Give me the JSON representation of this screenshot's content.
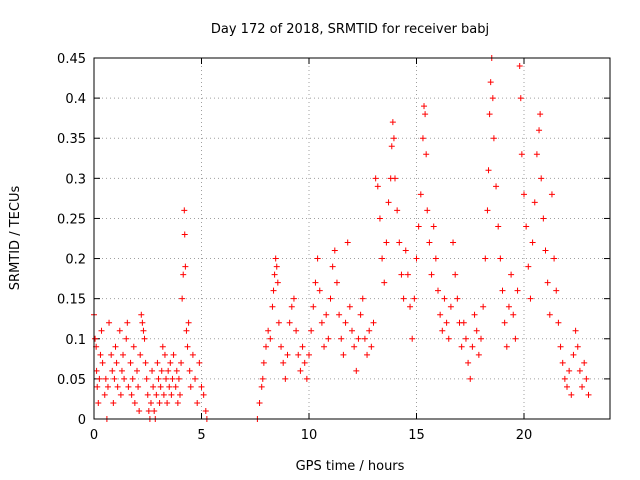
{
  "chart_data": {
    "type": "scatter",
    "title": "Day 172 of 2018, SRMTID for receiver babj",
    "xlabel": "GPS time / hours",
    "ylabel": "SRMTID / TECUs",
    "xlim": [
      0,
      24
    ],
    "ylim": [
      0,
      0.45
    ],
    "xticks": [
      0,
      5,
      10,
      15,
      20
    ],
    "xtick_labels": [
      "0",
      "5",
      "10",
      "15",
      "20"
    ],
    "yticks": [
      0,
      0.05,
      0.1,
      0.15,
      0.2,
      0.25,
      0.3,
      0.35,
      0.4,
      0.45
    ],
    "ytick_labels": [
      "0",
      "0.05",
      "0.1",
      "0.15",
      "0.2",
      "0.25",
      "0.3",
      "0.35",
      "0.4",
      "0.45"
    ],
    "grid": true,
    "marker": "+",
    "color": "#ff0000",
    "series": [
      {
        "name": "SRMTID",
        "points": [
          [
            0.0,
            0.13
          ],
          [
            0.05,
            0.1
          ],
          [
            0.1,
            0.09
          ],
          [
            0.12,
            0.06
          ],
          [
            0.15,
            0.04
          ],
          [
            0.2,
            0.02
          ],
          [
            0.25,
            0.05
          ],
          [
            0.3,
            0.08
          ],
          [
            0.35,
            0.11
          ],
          [
            0.4,
            0.07
          ],
          [
            0.5,
            0.03
          ],
          [
            0.55,
            0.05
          ],
          [
            0.6,
            0.0
          ],
          [
            0.65,
            0.04
          ],
          [
            0.7,
            0.12
          ],
          [
            0.8,
            0.08
          ],
          [
            0.85,
            0.06
          ],
          [
            0.9,
            0.02
          ],
          [
            0.95,
            0.05
          ],
          [
            1.0,
            0.09
          ],
          [
            1.05,
            0.07
          ],
          [
            1.1,
            0.04
          ],
          [
            1.2,
            0.11
          ],
          [
            1.25,
            0.03
          ],
          [
            1.3,
            0.06
          ],
          [
            1.35,
            0.08
          ],
          [
            1.4,
            0.05
          ],
          [
            1.5,
            0.1
          ],
          [
            1.55,
            0.12
          ],
          [
            1.6,
            0.04
          ],
          [
            1.7,
            0.07
          ],
          [
            1.75,
            0.03
          ],
          [
            1.8,
            0.05
          ],
          [
            1.85,
            0.09
          ],
          [
            1.9,
            0.02
          ],
          [
            2.0,
            0.06
          ],
          [
            2.05,
            0.04
          ],
          [
            2.1,
            0.01
          ],
          [
            2.15,
            0.08
          ],
          [
            2.2,
            0.13
          ],
          [
            2.25,
            0.12
          ],
          [
            2.3,
            0.11
          ],
          [
            2.35,
            0.1
          ],
          [
            2.4,
            0.07
          ],
          [
            2.45,
            0.05
          ],
          [
            2.5,
            0.03
          ],
          [
            2.55,
            0.01
          ],
          [
            2.6,
            0.0
          ],
          [
            2.65,
            0.02
          ],
          [
            2.7,
            0.06
          ],
          [
            2.75,
            0.04
          ],
          [
            2.8,
            0.01
          ],
          [
            2.85,
            0.0
          ],
          [
            2.9,
            0.03
          ],
          [
            2.95,
            0.07
          ],
          [
            3.0,
            0.05
          ],
          [
            3.05,
            0.02
          ],
          [
            3.1,
            0.04
          ],
          [
            3.15,
            0.06
          ],
          [
            3.2,
            0.09
          ],
          [
            3.25,
            0.03
          ],
          [
            3.3,
            0.08
          ],
          [
            3.35,
            0.05
          ],
          [
            3.4,
            0.02
          ],
          [
            3.45,
            0.06
          ],
          [
            3.5,
            0.04
          ],
          [
            3.55,
            0.07
          ],
          [
            3.6,
            0.03
          ],
          [
            3.65,
            0.05
          ],
          [
            3.7,
            0.08
          ],
          [
            3.8,
            0.04
          ],
          [
            3.85,
            0.06
          ],
          [
            3.9,
            0.02
          ],
          [
            3.95,
            0.05
          ],
          [
            4.0,
            0.03
          ],
          [
            4.05,
            0.07
          ],
          [
            4.1,
            0.15
          ],
          [
            4.15,
            0.18
          ],
          [
            4.2,
            0.26
          ],
          [
            4.22,
            0.23
          ],
          [
            4.25,
            0.19
          ],
          [
            4.3,
            0.11
          ],
          [
            4.35,
            0.09
          ],
          [
            4.4,
            0.12
          ],
          [
            4.45,
            0.06
          ],
          [
            4.5,
            0.04
          ],
          [
            4.6,
            0.08
          ],
          [
            4.7,
            0.05
          ],
          [
            4.8,
            0.02
          ],
          [
            4.9,
            0.07
          ],
          [
            5.0,
            0.04
          ],
          [
            5.1,
            0.03
          ],
          [
            5.2,
            0.01
          ],
          [
            5.25,
            0.0
          ],
          [
            7.6,
            0.0
          ],
          [
            7.7,
            0.02
          ],
          [
            7.8,
            0.04
          ],
          [
            7.85,
            0.05
          ],
          [
            7.9,
            0.07
          ],
          [
            8.0,
            0.09
          ],
          [
            8.1,
            0.11
          ],
          [
            8.2,
            0.1
          ],
          [
            8.3,
            0.14
          ],
          [
            8.35,
            0.16
          ],
          [
            8.4,
            0.18
          ],
          [
            8.45,
            0.2
          ],
          [
            8.5,
            0.19
          ],
          [
            8.55,
            0.17
          ],
          [
            8.6,
            0.12
          ],
          [
            8.7,
            0.09
          ],
          [
            8.8,
            0.07
          ],
          [
            8.9,
            0.05
          ],
          [
            9.0,
            0.08
          ],
          [
            9.1,
            0.12
          ],
          [
            9.2,
            0.14
          ],
          [
            9.3,
            0.15
          ],
          [
            9.4,
            0.11
          ],
          [
            9.5,
            0.08
          ],
          [
            9.6,
            0.06
          ],
          [
            9.7,
            0.09
          ],
          [
            9.8,
            0.07
          ],
          [
            9.9,
            0.05
          ],
          [
            10.0,
            0.08
          ],
          [
            10.1,
            0.11
          ],
          [
            10.2,
            0.14
          ],
          [
            10.3,
            0.17
          ],
          [
            10.4,
            0.2
          ],
          [
            10.5,
            0.16
          ],
          [
            10.6,
            0.12
          ],
          [
            10.7,
            0.09
          ],
          [
            10.8,
            0.13
          ],
          [
            10.9,
            0.1
          ],
          [
            11.0,
            0.15
          ],
          [
            11.1,
            0.19
          ],
          [
            11.2,
            0.21
          ],
          [
            11.3,
            0.17
          ],
          [
            11.4,
            0.13
          ],
          [
            11.5,
            0.1
          ],
          [
            11.6,
            0.08
          ],
          [
            11.7,
            0.12
          ],
          [
            11.8,
            0.22
          ],
          [
            11.9,
            0.14
          ],
          [
            12.0,
            0.11
          ],
          [
            12.1,
            0.09
          ],
          [
            12.2,
            0.06
          ],
          [
            12.3,
            0.1
          ],
          [
            12.4,
            0.13
          ],
          [
            12.5,
            0.15
          ],
          [
            12.6,
            0.1
          ],
          [
            12.7,
            0.08
          ],
          [
            12.8,
            0.11
          ],
          [
            12.9,
            0.09
          ],
          [
            13.0,
            0.12
          ],
          [
            13.1,
            0.3
          ],
          [
            13.2,
            0.29
          ],
          [
            13.3,
            0.25
          ],
          [
            13.4,
            0.2
          ],
          [
            13.5,
            0.17
          ],
          [
            13.6,
            0.22
          ],
          [
            13.7,
            0.27
          ],
          [
            13.8,
            0.3
          ],
          [
            13.85,
            0.34
          ],
          [
            13.9,
            0.37
          ],
          [
            13.95,
            0.35
          ],
          [
            14.0,
            0.3
          ],
          [
            14.1,
            0.26
          ],
          [
            14.2,
            0.22
          ],
          [
            14.3,
            0.18
          ],
          [
            14.4,
            0.15
          ],
          [
            14.5,
            0.21
          ],
          [
            14.6,
            0.18
          ],
          [
            14.7,
            0.14
          ],
          [
            14.8,
            0.1
          ],
          [
            14.9,
            0.15
          ],
          [
            15.0,
            0.2
          ],
          [
            15.1,
            0.24
          ],
          [
            15.2,
            0.28
          ],
          [
            15.3,
            0.35
          ],
          [
            15.35,
            0.39
          ],
          [
            15.4,
            0.38
          ],
          [
            15.45,
            0.33
          ],
          [
            15.5,
            0.26
          ],
          [
            15.6,
            0.22
          ],
          [
            15.7,
            0.18
          ],
          [
            15.8,
            0.24
          ],
          [
            15.9,
            0.2
          ],
          [
            16.0,
            0.16
          ],
          [
            16.1,
            0.13
          ],
          [
            16.2,
            0.11
          ],
          [
            16.3,
            0.15
          ],
          [
            16.4,
            0.12
          ],
          [
            16.5,
            0.1
          ],
          [
            16.6,
            0.14
          ],
          [
            16.7,
            0.22
          ],
          [
            16.8,
            0.18
          ],
          [
            16.9,
            0.15
          ],
          [
            17.0,
            0.12
          ],
          [
            17.1,
            0.09
          ],
          [
            17.2,
            0.12
          ],
          [
            17.3,
            0.1
          ],
          [
            17.4,
            0.07
          ],
          [
            17.5,
            0.05
          ],
          [
            17.6,
            0.09
          ],
          [
            17.7,
            0.13
          ],
          [
            17.8,
            0.11
          ],
          [
            17.9,
            0.08
          ],
          [
            18.0,
            0.1
          ],
          [
            18.1,
            0.14
          ],
          [
            18.2,
            0.2
          ],
          [
            18.3,
            0.26
          ],
          [
            18.35,
            0.31
          ],
          [
            18.4,
            0.38
          ],
          [
            18.45,
            0.42
          ],
          [
            18.5,
            0.45
          ],
          [
            18.55,
            0.4
          ],
          [
            18.6,
            0.35
          ],
          [
            18.7,
            0.29
          ],
          [
            18.8,
            0.24
          ],
          [
            18.9,
            0.2
          ],
          [
            19.0,
            0.16
          ],
          [
            19.1,
            0.12
          ],
          [
            19.2,
            0.09
          ],
          [
            19.3,
            0.14
          ],
          [
            19.4,
            0.18
          ],
          [
            19.5,
            0.13
          ],
          [
            19.6,
            0.1
          ],
          [
            19.7,
            0.16
          ],
          [
            19.8,
            0.44
          ],
          [
            19.85,
            0.4
          ],
          [
            19.9,
            0.33
          ],
          [
            20.0,
            0.28
          ],
          [
            20.1,
            0.24
          ],
          [
            20.2,
            0.19
          ],
          [
            20.3,
            0.15
          ],
          [
            20.4,
            0.22
          ],
          [
            20.5,
            0.27
          ],
          [
            20.6,
            0.33
          ],
          [
            20.7,
            0.36
          ],
          [
            20.75,
            0.38
          ],
          [
            20.8,
            0.3
          ],
          [
            20.9,
            0.25
          ],
          [
            21.0,
            0.21
          ],
          [
            21.1,
            0.17
          ],
          [
            21.2,
            0.13
          ],
          [
            21.3,
            0.28
          ],
          [
            21.4,
            0.2
          ],
          [
            21.5,
            0.16
          ],
          [
            21.6,
            0.12
          ],
          [
            21.7,
            0.09
          ],
          [
            21.8,
            0.07
          ],
          [
            21.9,
            0.05
          ],
          [
            22.0,
            0.04
          ],
          [
            22.1,
            0.06
          ],
          [
            22.2,
            0.03
          ],
          [
            22.3,
            0.08
          ],
          [
            22.4,
            0.11
          ],
          [
            22.5,
            0.09
          ],
          [
            22.6,
            0.06
          ],
          [
            22.7,
            0.04
          ],
          [
            22.8,
            0.07
          ],
          [
            22.9,
            0.05
          ],
          [
            23.0,
            0.03
          ]
        ]
      }
    ]
  }
}
